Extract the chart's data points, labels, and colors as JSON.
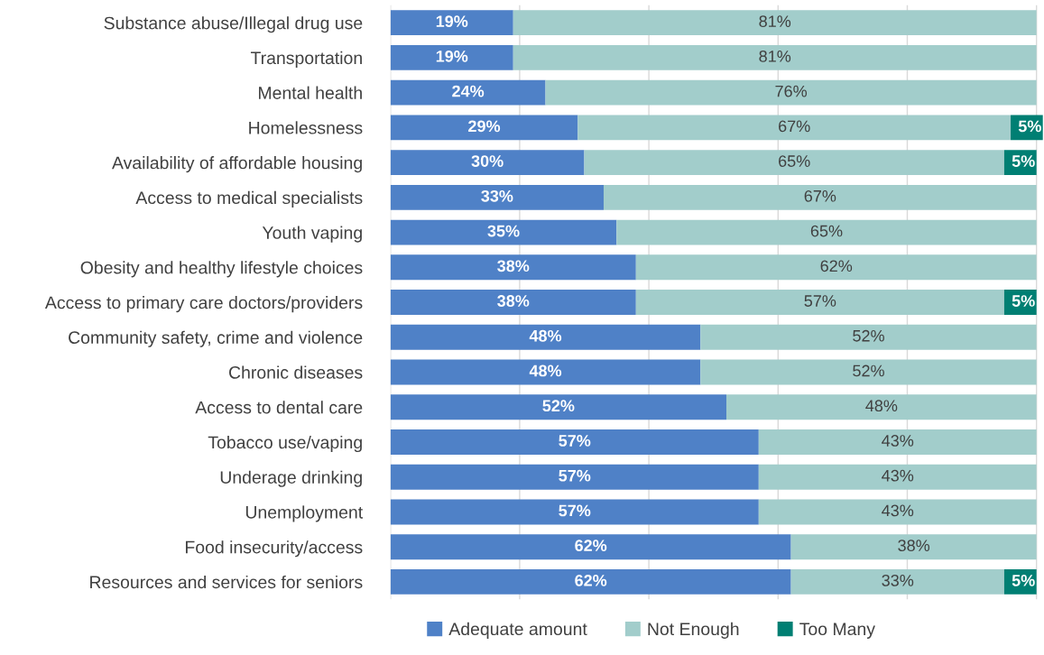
{
  "chart_data": {
    "type": "bar",
    "orientation": "horizontal",
    "stacked": true,
    "grid": "x",
    "legend": "bottom",
    "tick_labels": "y",
    "categories": [
      "Substance abuse/Illegal drug use",
      "Transportation",
      "Mental health",
      "Homelessness",
      "Availability of affordable housing",
      "Access to medical specialists",
      "Youth vaping",
      "Obesity and healthy lifestyle choices",
      "Access to primary care doctors/providers",
      "Community safety, crime and violence",
      "Chronic diseases",
      "Access to dental care",
      "Tobacco use/vaping",
      "Underage drinking",
      "Unemployment",
      "Food insecurity/access",
      "Resources and services for seniors"
    ],
    "series": [
      {
        "name": "Adequate amount",
        "color": "#4f81c7",
        "values": [
          19,
          19,
          24,
          29,
          30,
          33,
          35,
          38,
          38,
          48,
          48,
          52,
          57,
          57,
          57,
          62,
          62
        ],
        "value_labels": [
          "19%",
          "19%",
          "24%",
          "29%",
          "30%",
          "33%",
          "35%",
          "38%",
          "38%",
          "48%",
          "48%",
          "52%",
          "57%",
          "57%",
          "57%",
          "62%",
          "62%"
        ]
      },
      {
        "name": "Not Enough",
        "color": "#a2cdcb",
        "values": [
          81,
          81,
          76,
          67,
          65,
          67,
          65,
          62,
          57,
          52,
          52,
          48,
          43,
          43,
          43,
          38,
          33
        ],
        "value_labels": [
          "81%",
          "81%",
          "76%",
          "67%",
          "65%",
          "67%",
          "65%",
          "62%",
          "57%",
          "52%",
          "52%",
          "48%",
          "43%",
          "43%",
          "43%",
          "38%",
          "33%"
        ]
      },
      {
        "name": "Too Many",
        "color": "#007f73",
        "values": [
          null,
          null,
          null,
          5,
          5,
          null,
          null,
          null,
          5,
          null,
          null,
          null,
          null,
          null,
          null,
          null,
          5
        ],
        "value_labels": [
          null,
          null,
          null,
          "5%",
          "5%",
          null,
          null,
          null,
          "5%",
          null,
          null,
          null,
          null,
          null,
          null,
          null,
          "5%"
        ]
      }
    ]
  }
}
